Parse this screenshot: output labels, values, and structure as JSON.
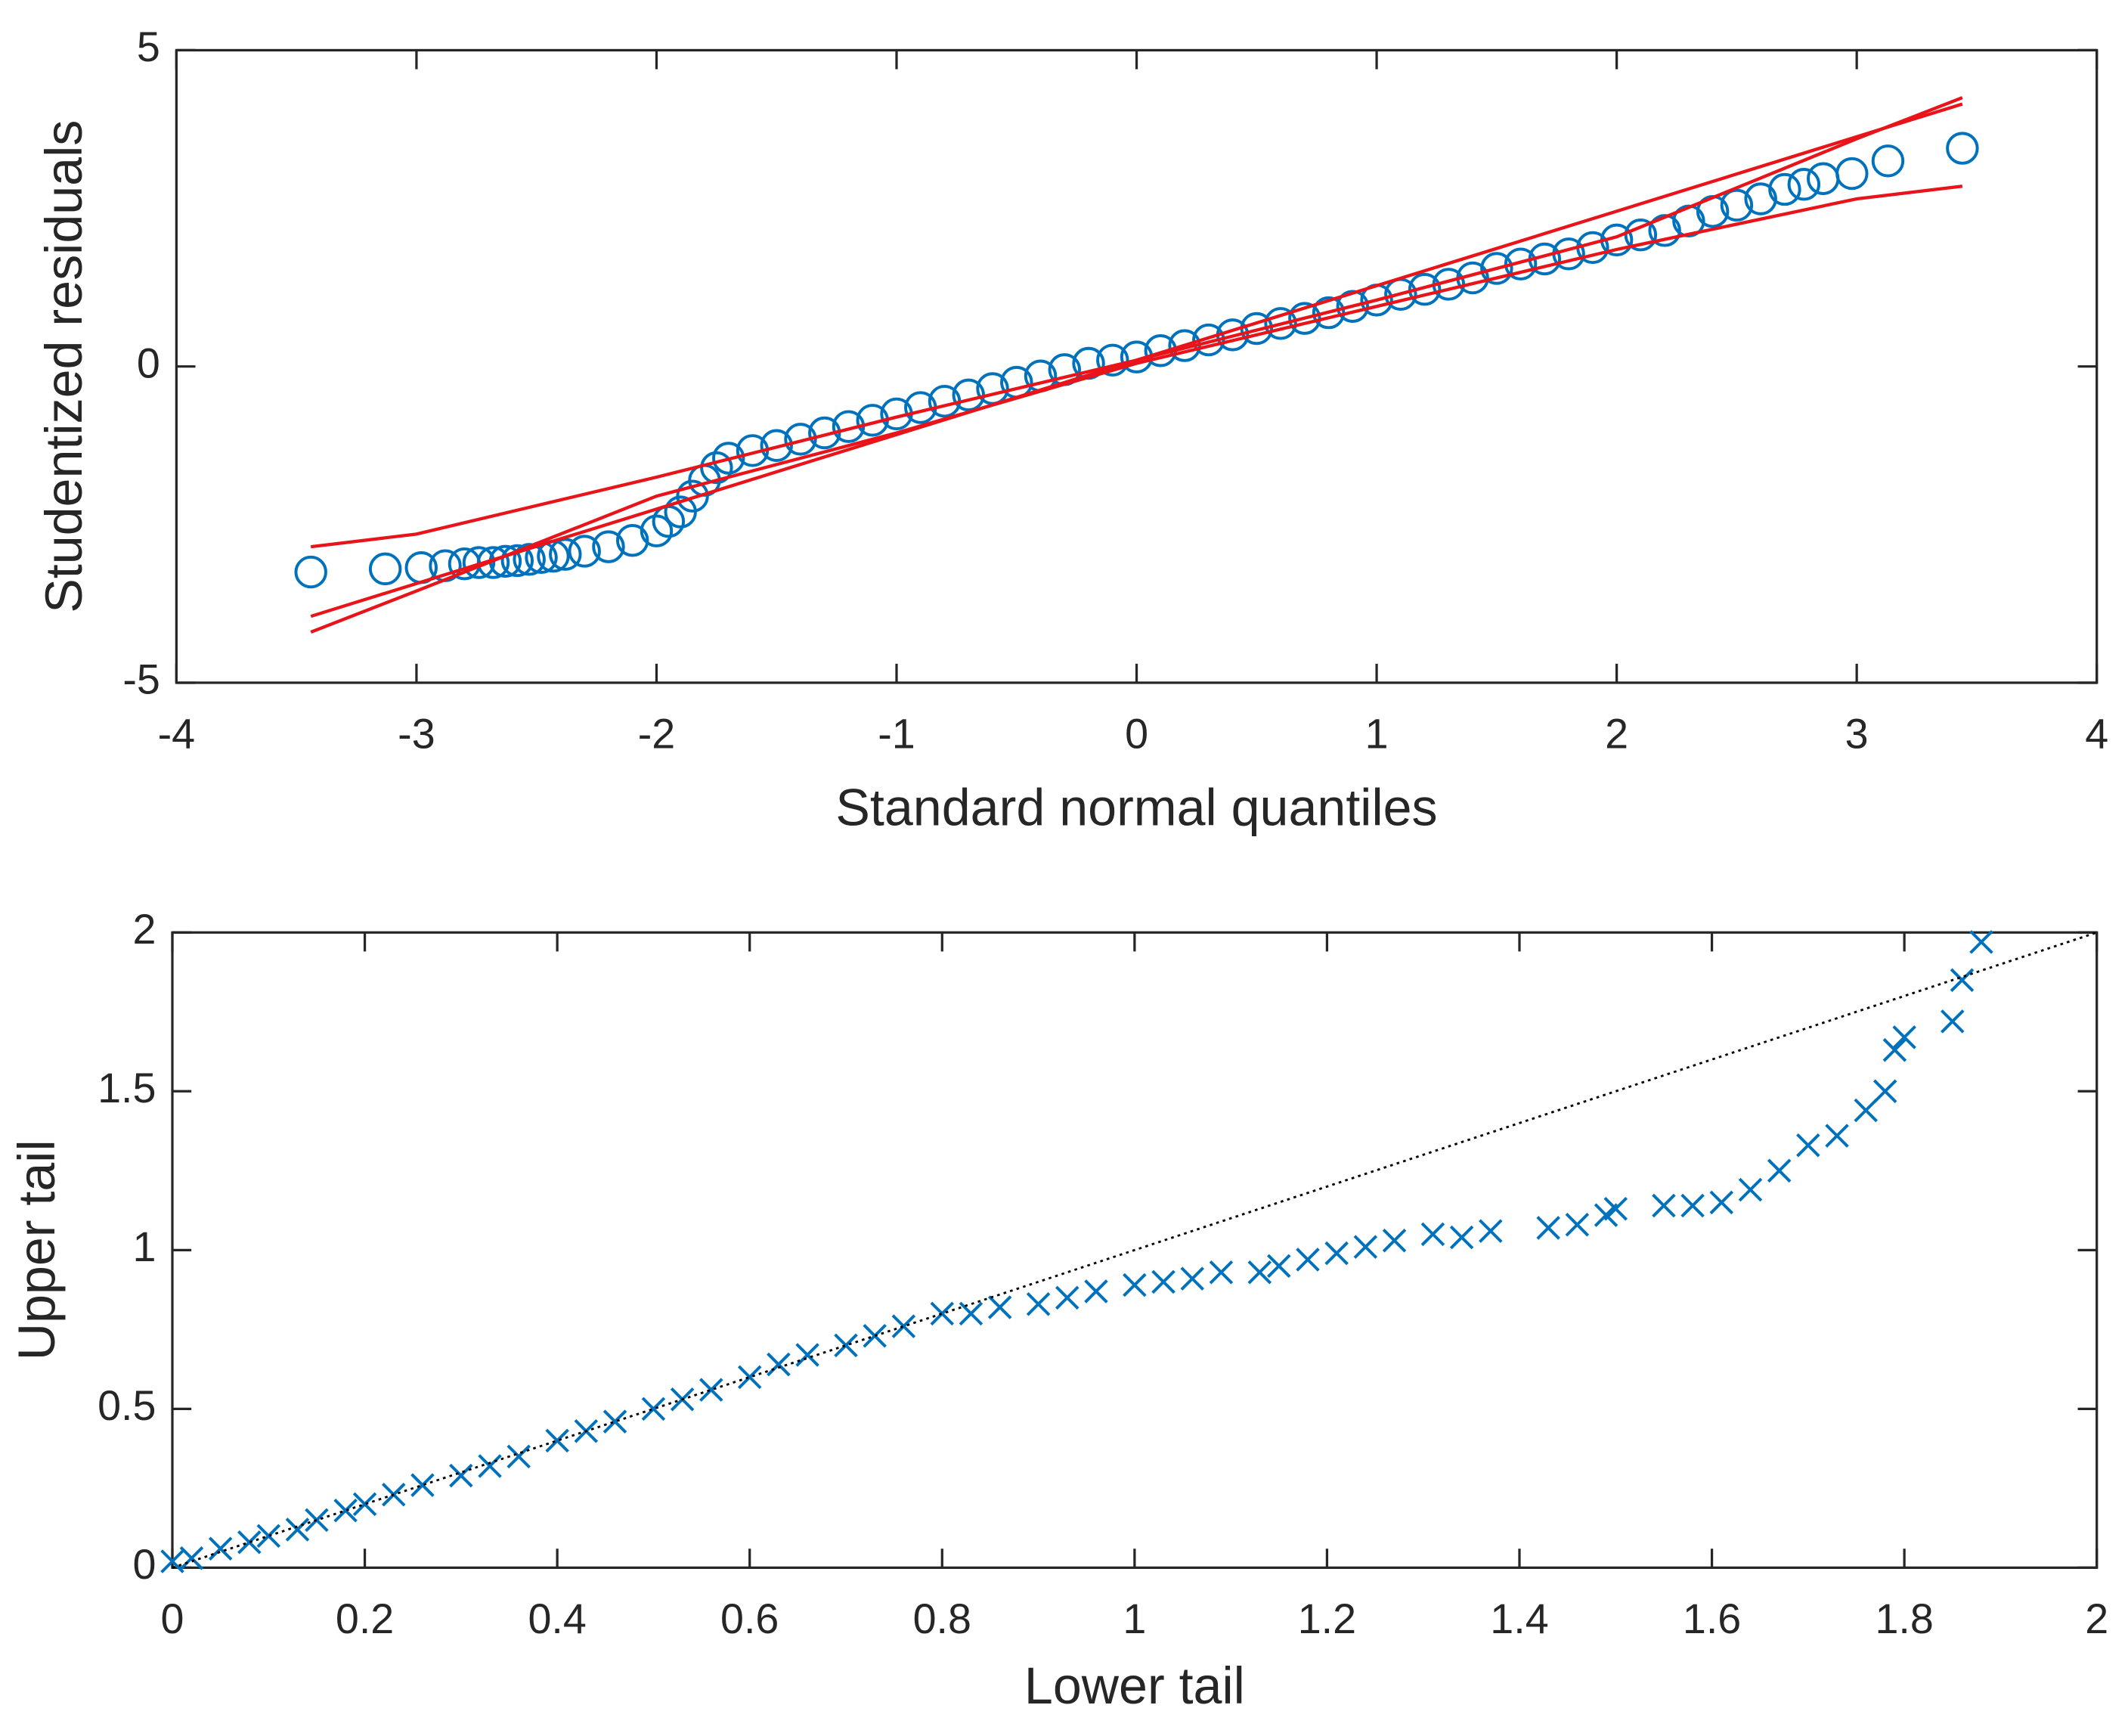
{
  "chart_data": [
    {
      "type": "scatter",
      "xlabel": "Standard normal quantiles",
      "ylabel": "Studentized residuals",
      "xlim": [
        -4,
        4
      ],
      "ylim": [
        -5,
        5
      ],
      "xticks": [
        -4,
        -3,
        -2,
        -1,
        0,
        1,
        2,
        3,
        4
      ],
      "yticks": [
        -5,
        0,
        5
      ],
      "series": [
        {
          "style": "marker",
          "marker": "circle",
          "color": "#0072bd",
          "x": [
            -3.44,
            -3.13,
            -2.98,
            -2.88,
            -2.8,
            -2.74,
            -2.68,
            -2.63,
            -2.58,
            -2.53,
            -2.48,
            -2.43,
            -2.38,
            -2.3,
            -2.2,
            -2.1,
            -2.0,
            -1.95,
            -1.9,
            -1.85,
            -1.8,
            -1.75,
            -1.7,
            -1.6,
            -1.5,
            -1.4,
            -1.3,
            -1.2,
            -1.1,
            -1.0,
            -0.9,
            -0.8,
            -0.7,
            -0.6,
            -0.5,
            -0.4,
            -0.3,
            -0.2,
            -0.1,
            0,
            0.1,
            0.2,
            0.3,
            0.4,
            0.5,
            0.6,
            0.7,
            0.8,
            0.9,
            1.0,
            1.1,
            1.2,
            1.3,
            1.4,
            1.5,
            1.6,
            1.7,
            1.8,
            1.9,
            2.0,
            2.1,
            2.2,
            2.3,
            2.4,
            2.5,
            2.6,
            2.7,
            2.78,
            2.86,
            2.98,
            3.13,
            3.44
          ],
          "values": [
            -3.25,
            -3.2,
            -3.18,
            -3.15,
            -3.12,
            -3.1,
            -3.1,
            -3.08,
            -3.07,
            -3.05,
            -3.02,
            -3.0,
            -2.97,
            -2.92,
            -2.85,
            -2.75,
            -2.6,
            -2.45,
            -2.3,
            -2.05,
            -1.8,
            -1.6,
            -1.45,
            -1.33,
            -1.25,
            -1.15,
            -1.05,
            -0.95,
            -0.85,
            -0.75,
            -0.65,
            -0.55,
            -0.45,
            -0.35,
            -0.25,
            -0.15,
            -0.05,
            0.05,
            0.1,
            0.15,
            0.25,
            0.33,
            0.42,
            0.5,
            0.6,
            0.68,
            0.76,
            0.85,
            0.95,
            1.05,
            1.14,
            1.22,
            1.3,
            1.4,
            1.55,
            1.62,
            1.7,
            1.78,
            1.88,
            2.0,
            2.08,
            2.15,
            2.3,
            2.45,
            2.55,
            2.65,
            2.8,
            2.88,
            2.97,
            3.05,
            3.25,
            3.45
          ]
        },
        {
          "style": "line",
          "color": "#e8141a",
          "x": [
            -3.44,
            3.44
          ],
          "values": [
            -3.95,
            4.15
          ]
        },
        {
          "style": "line",
          "color": "#e8141a",
          "x": [
            -3.44,
            -3,
            -2,
            -1,
            0,
            1,
            2,
            3,
            3.44
          ],
          "values": [
            -2.85,
            -2.65,
            -1.75,
            -0.8,
            0.1,
            1.05,
            2.05,
            3.6,
            4.25
          ]
        },
        {
          "style": "line",
          "color": "#e8141a",
          "x": [
            -3.44,
            -3,
            -2,
            -1,
            0,
            1,
            2,
            3,
            3.44
          ],
          "values": [
            -4.2,
            -3.55,
            -2.05,
            -1.05,
            0.05,
            0.95,
            1.85,
            2.65,
            2.85
          ]
        }
      ]
    },
    {
      "type": "scatter",
      "xlabel": "Lower tail",
      "ylabel": "Upper tail",
      "xlim": [
        0,
        2
      ],
      "ylim": [
        0,
        2
      ],
      "xticks": [
        0,
        0.2,
        0.4,
        0.6,
        0.8,
        1,
        1.2,
        1.4,
        1.6,
        1.8,
        2
      ],
      "yticks": [
        0,
        0.5,
        1,
        1.5,
        2
      ],
      "series": [
        {
          "style": "marker",
          "marker": "cross",
          "color": "#0072bd",
          "x": [
            0,
            0.02,
            0.05,
            0.08,
            0.1,
            0.13,
            0.15,
            0.18,
            0.2,
            0.23,
            0.26,
            0.3,
            0.33,
            0.36,
            0.4,
            0.43,
            0.46,
            0.5,
            0.53,
            0.56,
            0.6,
            0.63,
            0.66,
            0.7,
            0.73,
            0.76,
            0.8,
            0.83,
            0.86,
            0.9,
            0.93,
            0.96,
            1.0,
            1.03,
            1.06,
            1.09,
            1.13,
            1.15,
            1.18,
            1.21,
            1.24,
            1.27,
            1.31,
            1.34,
            1.37,
            1.43,
            1.46,
            1.49,
            1.5,
            1.55,
            1.58,
            1.61,
            1.64,
            1.67,
            1.7,
            1.73,
            1.76,
            1.78,
            1.79,
            1.8,
            1.85,
            1.86,
            1.88
          ],
          "values": [
            0.02,
            0.03,
            0.06,
            0.08,
            0.1,
            0.12,
            0.15,
            0.18,
            0.2,
            0.23,
            0.26,
            0.29,
            0.32,
            0.35,
            0.4,
            0.43,
            0.46,
            0.5,
            0.53,
            0.56,
            0.6,
            0.64,
            0.67,
            0.7,
            0.73,
            0.76,
            0.8,
            0.8,
            0.82,
            0.83,
            0.85,
            0.87,
            0.89,
            0.9,
            0.91,
            0.93,
            0.93,
            0.95,
            0.97,
            0.99,
            1.01,
            1.03,
            1.05,
            1.04,
            1.06,
            1.07,
            1.08,
            1.11,
            1.13,
            1.14,
            1.14,
            1.15,
            1.19,
            1.25,
            1.33,
            1.36,
            1.44,
            1.5,
            1.63,
            1.67,
            1.72,
            1.85,
            1.97
          ]
        },
        {
          "style": "line",
          "dash": "dotted",
          "color": "#000000",
          "x": [
            0,
            2
          ],
          "values": [
            0,
            2
          ]
        }
      ]
    }
  ]
}
